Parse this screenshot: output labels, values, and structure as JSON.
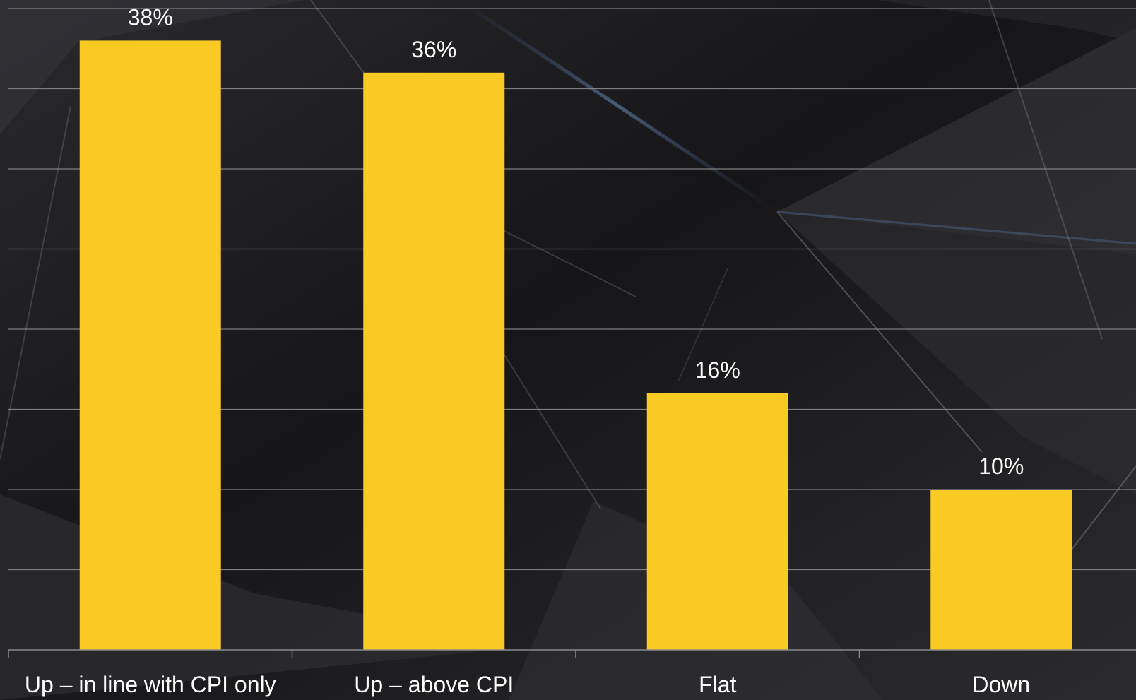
{
  "chart_data": {
    "type": "bar",
    "categories": [
      "Up – in line with CPI only",
      "Up – above CPI",
      "Flat",
      "Down"
    ],
    "values": [
      38,
      36,
      16,
      10
    ],
    "value_labels": [
      "38%",
      "36%",
      "16%",
      "10%"
    ],
    "ylim": [
      0,
      40
    ],
    "grid": true,
    "legend": "none",
    "colors": {
      "bar": "#F9CA24",
      "gridline": "#8a8a8a",
      "text": "#ffffff",
      "background": "#1a1a1c"
    }
  }
}
